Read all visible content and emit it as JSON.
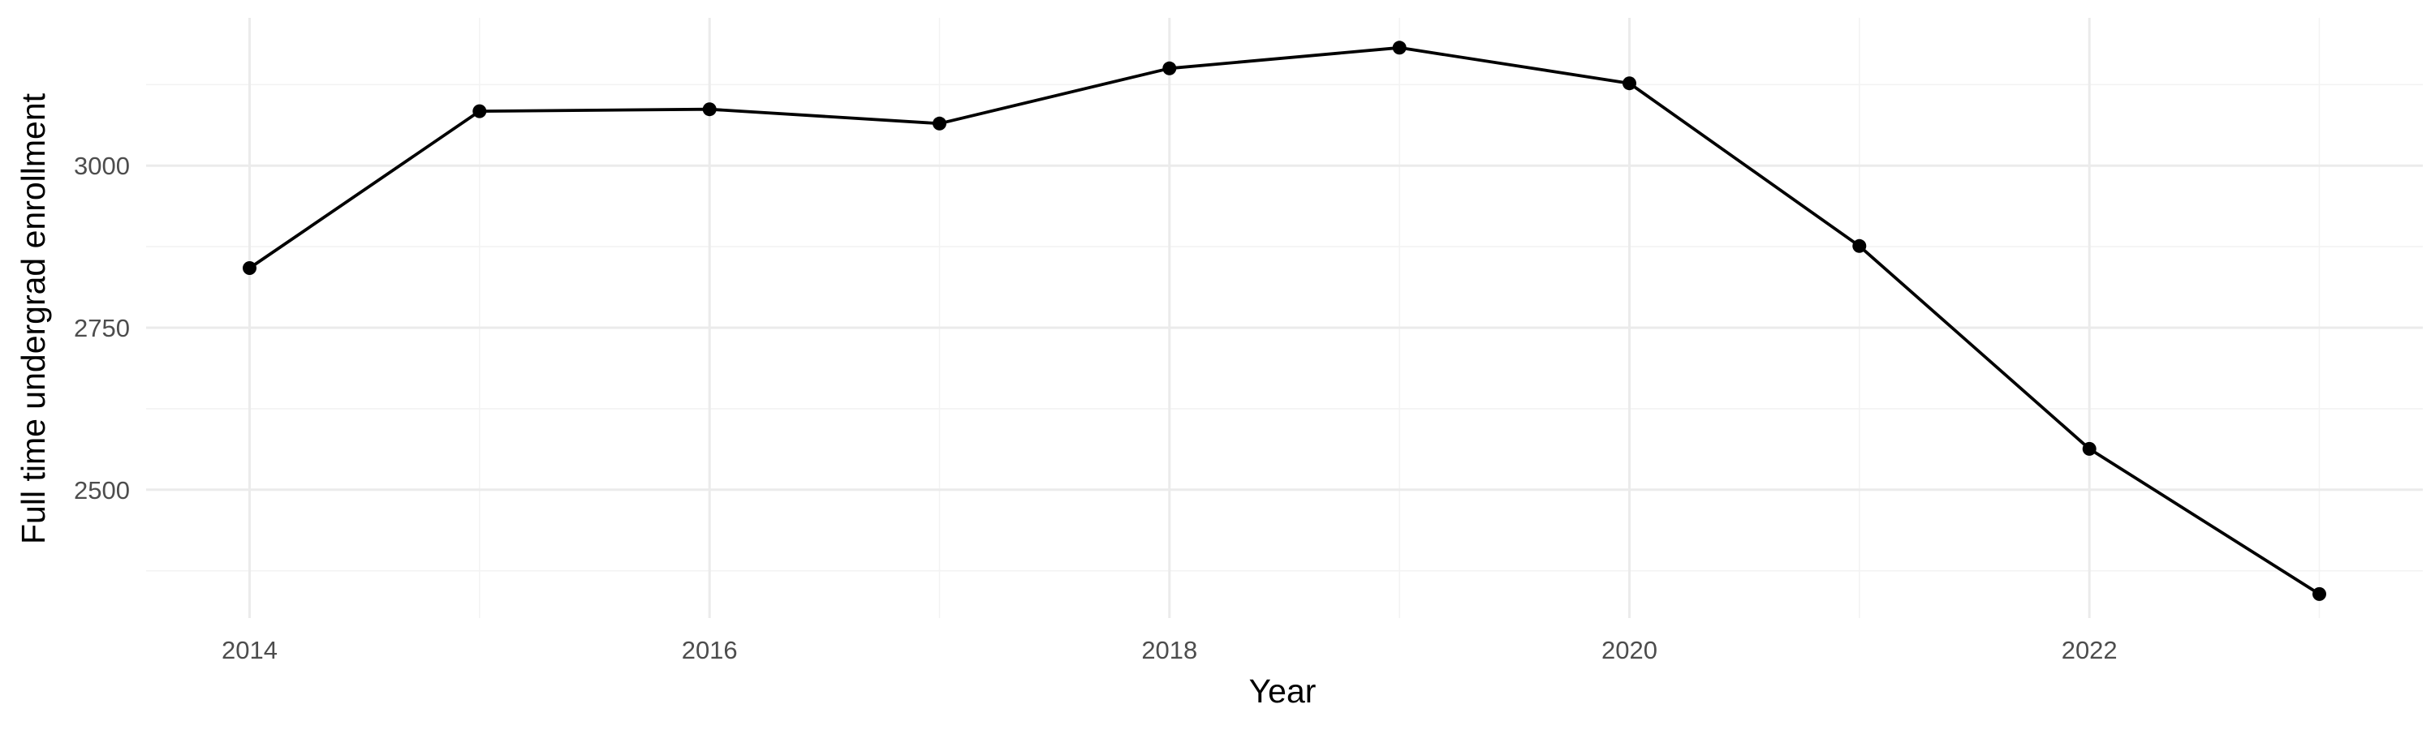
{
  "chart_data": {
    "type": "line",
    "title": "",
    "xlabel": "Year",
    "ylabel": "Full time undergrad enrollment",
    "x": [
      2014,
      2015,
      2016,
      2017,
      2018,
      2019,
      2020,
      2021,
      2022,
      2023
    ],
    "series": [
      {
        "name": "",
        "values": [
          2842,
          3084,
          3087,
          3065,
          3150,
          3182,
          3127,
          2876,
          2563,
          2339
        ]
      }
    ],
    "xlim": [
      2013.55,
      2023.45
    ],
    "ylim": [
      2302,
      3228
    ],
    "x_ticks": [
      2014,
      2016,
      2018,
      2020,
      2022
    ],
    "x_tick_labels": [
      "2014",
      "2016",
      "2018",
      "2020",
      "2022"
    ],
    "x_minor_ticks": [
      2015,
      2017,
      2019,
      2021,
      2023
    ],
    "y_ticks": [
      2500,
      2750,
      3000
    ],
    "y_tick_labels": [
      "2500",
      "2750",
      "3000"
    ],
    "y_minor_ticks": [
      2375,
      2625,
      2875,
      3125
    ],
    "grid": true,
    "legend": "none",
    "colors": {
      "line": "#000000",
      "points": "#000000",
      "background": "#ffffff"
    }
  }
}
